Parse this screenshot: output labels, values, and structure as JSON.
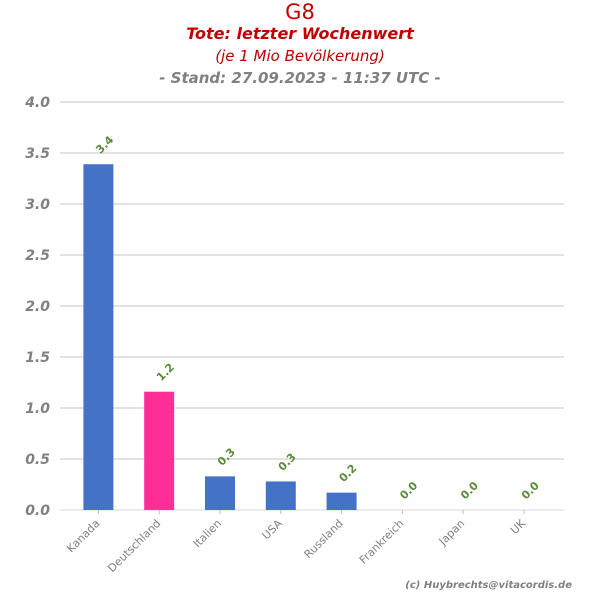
{
  "chart_data": {
    "type": "bar",
    "title": "G8",
    "subtitle": "Tote: letzter Wochenwert",
    "subtitle2": "(je 1 Mio Bevölkerung)",
    "subtitle3": "- Stand: 27.09.2023 - 11:37 UTC -",
    "categories": [
      "Kanada",
      "Deutschland",
      "Italien",
      "USA",
      "Russland",
      "Frankreich",
      "Japan",
      "UK"
    ],
    "values": [
      3.39,
      1.16,
      0.33,
      0.28,
      0.17,
      0.0,
      0.0,
      0.0
    ],
    "data_labels": [
      "3.4",
      "1.2",
      "0.3",
      "0.3",
      "0.2",
      "0.0",
      "0.0",
      "0.0"
    ],
    "bar_colors": [
      "#4472c4",
      "#ff2d96",
      "#4472c4",
      "#4472c4",
      "#4472c4",
      "#4472c4",
      "#4472c4",
      "#4472c4"
    ],
    "ylim": [
      0,
      4.0
    ],
    "yticks": [
      "0.0",
      "0.5",
      "1.0",
      "1.5",
      "2.0",
      "2.5",
      "3.0",
      "3.5",
      "4.0"
    ],
    "xlabel": "",
    "ylabel": "",
    "grid": true,
    "colors": {
      "title": "#c00000",
      "subtitle_gray": "#808080",
      "data_label": "#5a8a3a",
      "grid": "#d9d9d9",
      "tick_label": "#808080"
    }
  },
  "footer": {
    "credit": "(c) Huybrechts@vitacordis.de"
  }
}
